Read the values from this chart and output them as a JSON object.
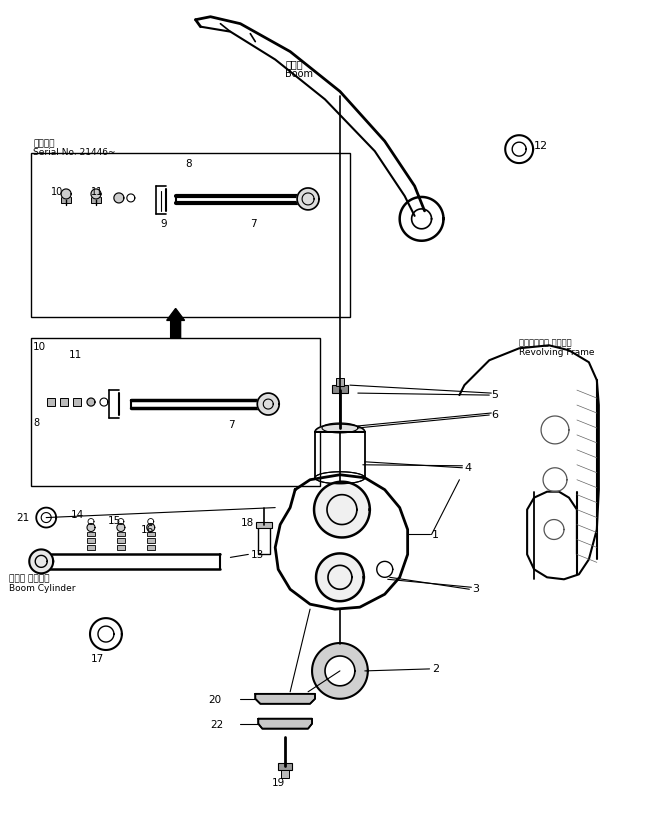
{
  "bg_color": "#ffffff",
  "line_color": "#000000",
  "fig_width": 6.48,
  "fig_height": 8.31,
  "dpi": 100,
  "labels": {
    "boom_jp": "ブーム",
    "boom_en": "Boom",
    "boom_cyl_jp": "ブーム シリンダ",
    "boom_cyl_en": "Boom Cylinder",
    "rev_frame_jp": "レボルビング フレーム",
    "rev_frame_en": "Revolving Frame",
    "serial_jp": "適用号機",
    "serial_en": "Serial No. 21446~"
  }
}
